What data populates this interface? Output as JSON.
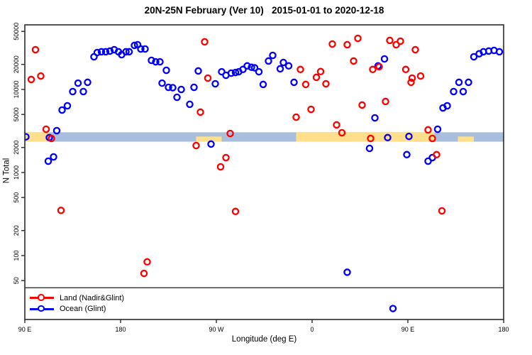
{
  "chart_data": {
    "type": "scatter",
    "title": "20N-25N February (Ver 10)   2015-01-01 to 2020-12-18",
    "xlabel": "Longitude (deg E)",
    "ylabel": "N Total",
    "x_axis": {
      "range": [
        90,
        540
      ],
      "ticks": [
        90,
        180,
        270,
        360,
        450,
        540
      ],
      "tick_labels": [
        "90 E",
        "180",
        "90 W",
        "0",
        "90 E",
        "180"
      ]
    },
    "y_axis": {
      "scale": "log",
      "range": [
        17,
        59900
      ],
      "ticks": [
        50,
        100,
        200,
        500,
        1000,
        2000,
        5000,
        10000,
        20000,
        50000
      ]
    },
    "reference_line": {
      "y": 41,
      "color": "#333333"
    },
    "band": {
      "y_range": [
        2350,
        3050
      ],
      "base_color": "#a9bedc",
      "highlight_color": "#ffdf8c",
      "segments": [
        {
          "x": [
            91,
            113
          ],
          "partial": false
        },
        {
          "x": [
            251,
            275
          ],
          "partial": true
        },
        {
          "x": [
            345,
            475
          ],
          "partial": false
        },
        {
          "x": [
            497,
            512
          ],
          "partial": true
        }
      ]
    },
    "series": [
      {
        "name": "Land (Nadir&Glint)",
        "color": "#ff0000",
        "points": [
          [
            100,
            30100
          ],
          [
            96,
            13200
          ],
          [
            105,
            14500
          ],
          [
            110,
            3320
          ],
          [
            115,
            2570
          ],
          [
            124,
            350
          ],
          [
            205,
            84
          ],
          [
            202,
            61
          ],
          [
            259,
            37400
          ],
          [
            262,
            13700
          ],
          [
            255,
            5330
          ],
          [
            251,
            2110
          ],
          [
            279,
            1510
          ],
          [
            274,
            1170
          ],
          [
            288,
            340
          ],
          [
            283,
            2950
          ],
          [
            349,
            17400
          ],
          [
            368,
            16400
          ],
          [
            364,
            14000
          ],
          [
            373,
            11700
          ],
          [
            354,
            11500
          ],
          [
            359,
            5760
          ],
          [
            345,
            4640
          ],
          [
            383,
            3740
          ],
          [
            388,
            3010
          ],
          [
            379,
            35200
          ],
          [
            393,
            34500
          ],
          [
            403,
            41200
          ],
          [
            399,
            22000
          ],
          [
            417,
            17400
          ],
          [
            423,
            18800
          ],
          [
            433,
            38900
          ],
          [
            439,
            34500
          ],
          [
            443,
            38100
          ],
          [
            457,
            30100
          ],
          [
            448,
            17400
          ],
          [
            454,
            13700
          ],
          [
            462,
            14500
          ],
          [
            453,
            12200
          ],
          [
            407,
            6490
          ],
          [
            429,
            7160
          ],
          [
            469,
            3260
          ],
          [
            415,
            2570
          ],
          [
            473,
            2570
          ],
          [
            477,
            1640
          ],
          [
            482,
            345
          ]
        ]
      },
      {
        "name": "Ocean (Glint)",
        "color": "#0000ff",
        "points": [
          [
            91,
            2690
          ],
          [
            120,
            3190
          ],
          [
            113,
            2630
          ],
          [
            117,
            1540
          ],
          [
            112,
            1370
          ],
          [
            125,
            5650
          ],
          [
            130,
            6360
          ],
          [
            135,
            9420
          ],
          [
            140,
            11900
          ],
          [
            145,
            9420
          ],
          [
            149,
            12200
          ],
          [
            155,
            24700
          ],
          [
            158,
            27800
          ],
          [
            162,
            28400
          ],
          [
            166,
            28400
          ],
          [
            170,
            29000
          ],
          [
            174,
            30100
          ],
          [
            178,
            28400
          ],
          [
            181,
            26200
          ],
          [
            185,
            28400
          ],
          [
            188,
            28400
          ],
          [
            193,
            33900
          ],
          [
            196,
            34500
          ],
          [
            199,
            30700
          ],
          [
            203,
            30700
          ],
          [
            209,
            22400
          ],
          [
            213,
            21500
          ],
          [
            217,
            21500
          ],
          [
            223,
            17000
          ],
          [
            219,
            11900
          ],
          [
            225,
            10600
          ],
          [
            229,
            10500
          ],
          [
            233,
            8050
          ],
          [
            237,
            10000
          ],
          [
            245,
            6620
          ],
          [
            249,
            10600
          ],
          [
            253,
            16700
          ],
          [
            269,
            11700
          ],
          [
            275,
            16300
          ],
          [
            279,
            14800
          ],
          [
            284,
            15700
          ],
          [
            288,
            16000
          ],
          [
            291,
            16300
          ],
          [
            295,
            17400
          ],
          [
            299,
            19200
          ],
          [
            303,
            18500
          ],
          [
            306,
            18200
          ],
          [
            310,
            16300
          ],
          [
            314,
            11500
          ],
          [
            319,
            22000
          ],
          [
            323,
            25700
          ],
          [
            330,
            17700
          ],
          [
            333,
            21100
          ],
          [
            338,
            19200
          ],
          [
            343,
            12200
          ],
          [
            265,
            2200
          ],
          [
            393,
            63
          ],
          [
            419,
            4550
          ],
          [
            422,
            19200
          ],
          [
            428,
            23300
          ],
          [
            431,
            2630
          ],
          [
            451,
            2720
          ],
          [
            478,
            3320
          ],
          [
            414,
            1950
          ],
          [
            449,
            1640
          ],
          [
            469,
            1370
          ],
          [
            473,
            1510
          ],
          [
            483,
            5990
          ],
          [
            487,
            6360
          ],
          [
            493,
            9420
          ],
          [
            502,
            9420
          ],
          [
            498,
            12200
          ],
          [
            507,
            12200
          ],
          [
            512,
            24700
          ],
          [
            517,
            26900
          ],
          [
            521,
            28400
          ],
          [
            526,
            29000
          ],
          [
            531,
            29500
          ],
          [
            536,
            28400
          ],
          [
            436,
            23
          ]
        ]
      }
    ]
  }
}
